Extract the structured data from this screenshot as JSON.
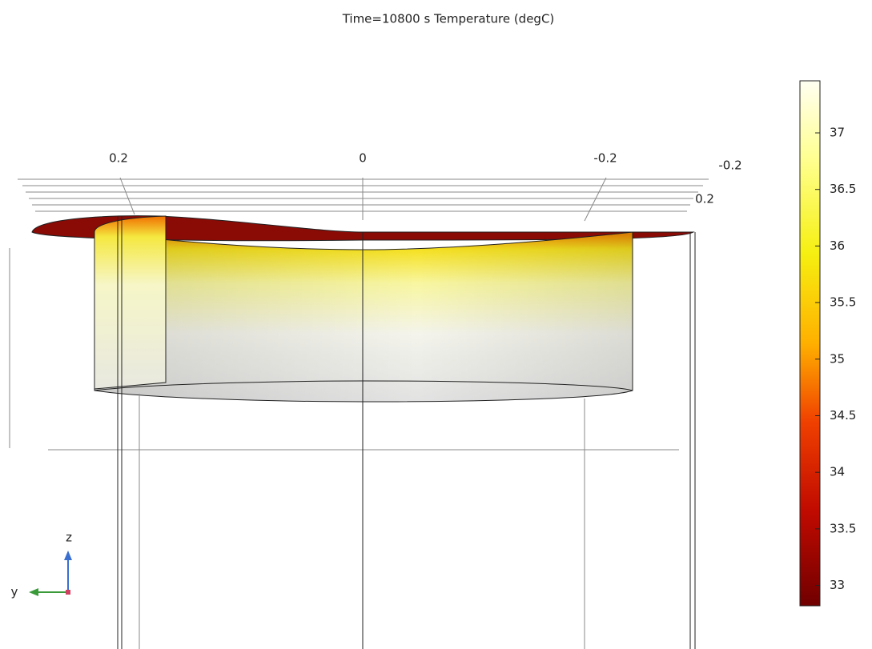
{
  "title": "Time=10800 s   Temperature (degC)",
  "axis_labels": {
    "top": [
      0.2,
      0,
      -0.2
    ],
    "side": [
      -0.2,
      0.2
    ]
  },
  "triad": {
    "z": "z",
    "y": "y"
  },
  "colorbar": {
    "range": [
      32.82,
      37.46
    ],
    "ticks": [
      33,
      33.5,
      34,
      34.5,
      35,
      35.5,
      36,
      36.5,
      37
    ]
  }
}
